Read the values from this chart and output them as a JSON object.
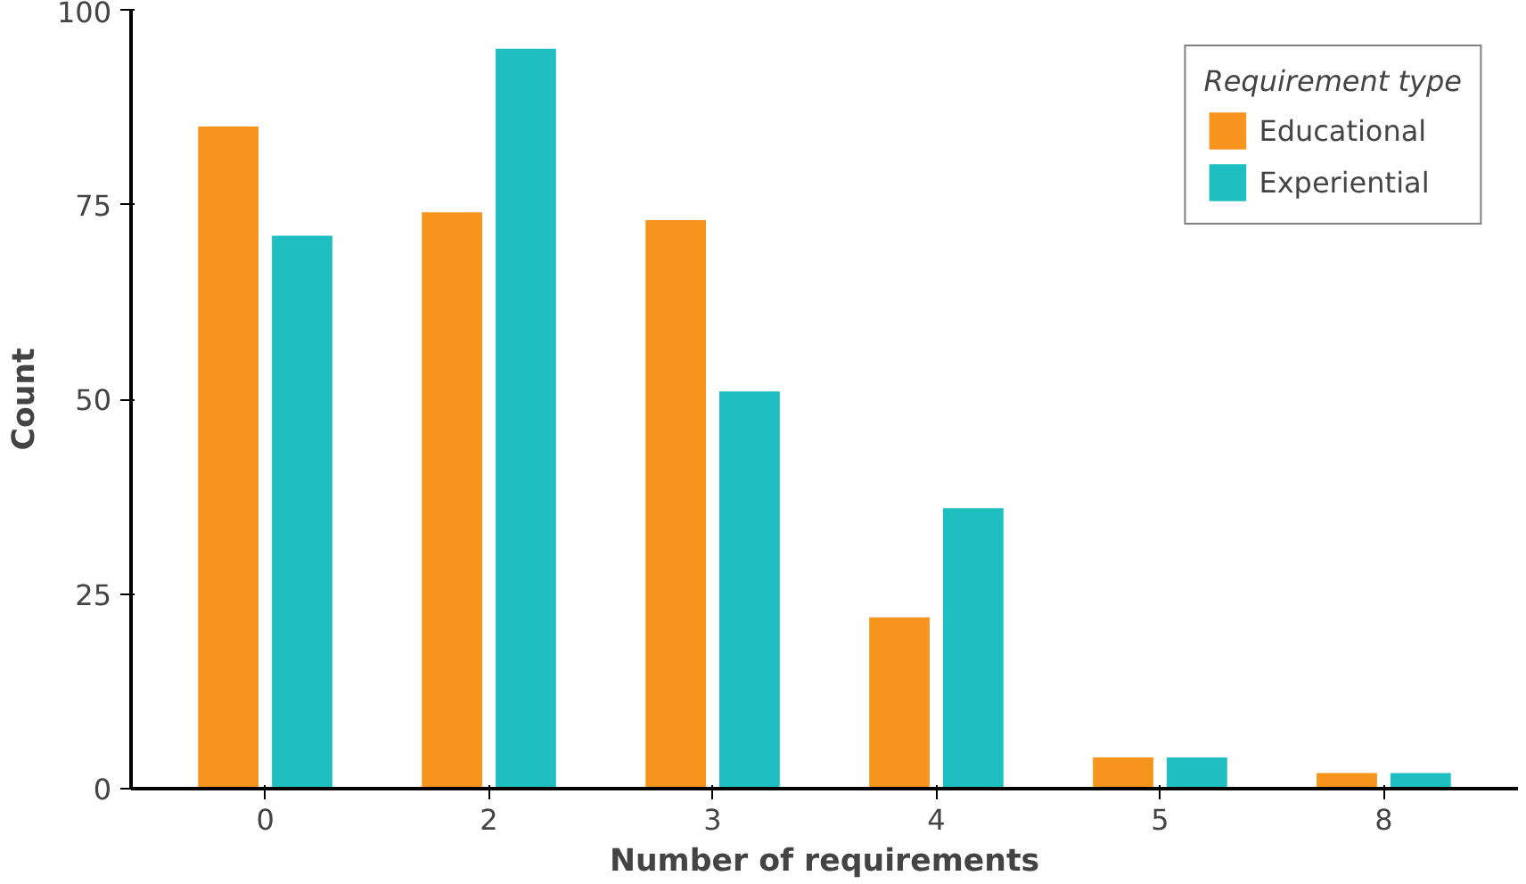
{
  "chart_data": {
    "type": "bar",
    "xlabel": "Number of requirements",
    "ylabel": "Count",
    "legend_title": "Requirement type",
    "categories": [
      "0",
      "2",
      "3",
      "4",
      "5",
      "8"
    ],
    "series": [
      {
        "name": "Educational",
        "color": "#f7941d",
        "values": [
          85,
          74,
          73,
          22,
          4,
          2
        ]
      },
      {
        "name": "Experiential",
        "color": "#1fbec1",
        "values": [
          71,
          95,
          51,
          36,
          4,
          2
        ]
      }
    ],
    "ylim": [
      0,
      100
    ],
    "yticks": [
      0,
      25,
      50,
      75,
      100
    ],
    "grid": false,
    "legend": "top right"
  }
}
